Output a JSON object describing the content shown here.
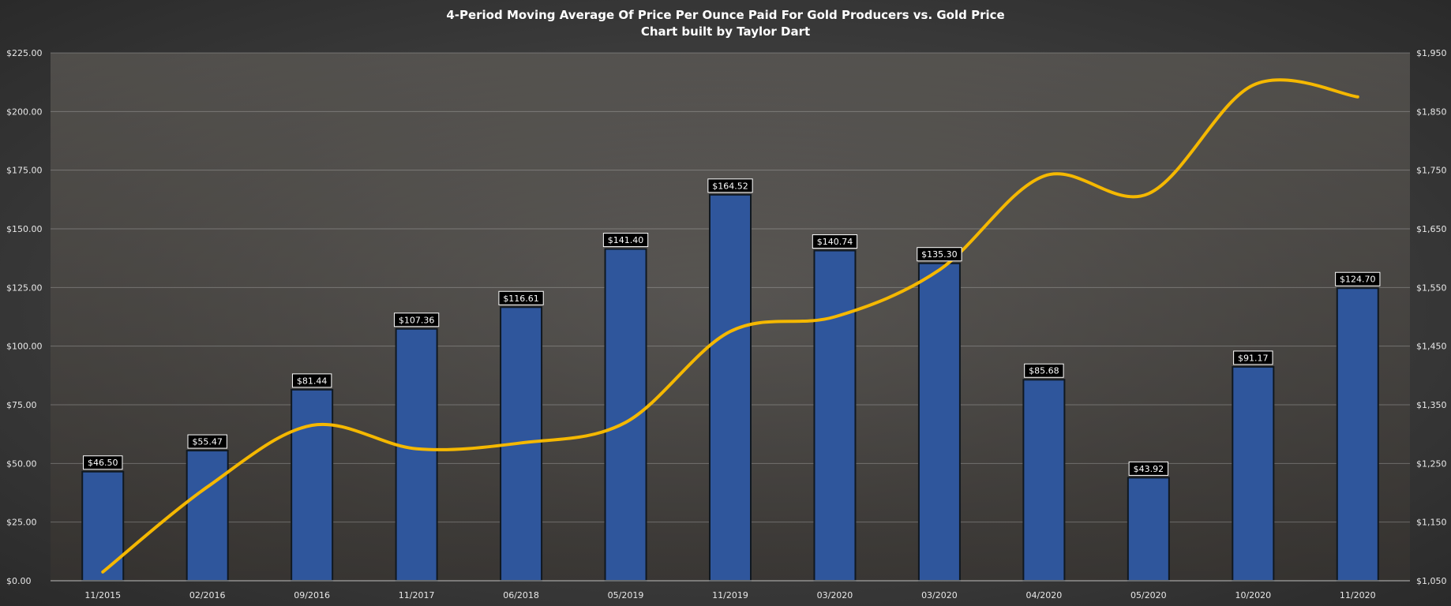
{
  "chart_data": {
    "type": "bar",
    "title": "4-Period Moving Average Of Price Per Ounce Paid For Gold Producers vs. Gold Price",
    "subtitle": "Chart built by Taylor Dart",
    "categories": [
      "11/2015",
      "02/2016",
      "09/2016",
      "11/2017",
      "06/2018",
      "05/2019",
      "11/2019",
      "03/2020",
      "03/2020",
      "04/2020",
      "05/2020",
      "10/2020",
      "11/2020"
    ],
    "series": [
      {
        "type": "bar",
        "axis": "left",
        "color": "#2f569c",
        "values": [
          46.5,
          55.47,
          81.44,
          107.36,
          116.61,
          141.4,
          164.52,
          140.74,
          135.3,
          85.68,
          43.92,
          91.17,
          124.7
        ],
        "labels": [
          "$46.50",
          "$55.47",
          "$81.44",
          "$107.36",
          "$116.61",
          "$141.40",
          "$164.52",
          "$140.74",
          "$135.30",
          "$85.68",
          "$43.92",
          "$91.17",
          "$124.70"
        ]
      },
      {
        "type": "line",
        "axis": "right",
        "color": "#f5b800",
        "values": [
          1065,
          1210,
          1315,
          1275,
          1285,
          1320,
          1475,
          1500,
          1580,
          1740,
          1710,
          1895,
          1875
        ]
      }
    ],
    "y_left": {
      "range": [
        0,
        225
      ],
      "ticks": [
        0,
        25,
        50,
        75,
        100,
        125,
        150,
        175,
        200,
        225
      ],
      "tick_labels": [
        "$0.00",
        "$25.00",
        "$50.00",
        "$75.00",
        "$100.00",
        "$125.00",
        "$150.00",
        "$175.00",
        "$200.00",
        "$225.00"
      ]
    },
    "y_right": {
      "range": [
        1050,
        1950
      ],
      "ticks": [
        1050,
        1150,
        1250,
        1350,
        1450,
        1550,
        1650,
        1750,
        1850,
        1950
      ],
      "tick_labels": [
        "$1,050",
        "$1,150",
        "$1,250",
        "$1,350",
        "$1,450",
        "$1,550",
        "$1,650",
        "$1,750",
        "$1,850",
        "$1,950"
      ]
    },
    "grid": true,
    "background_color": "#4a4a4a"
  }
}
